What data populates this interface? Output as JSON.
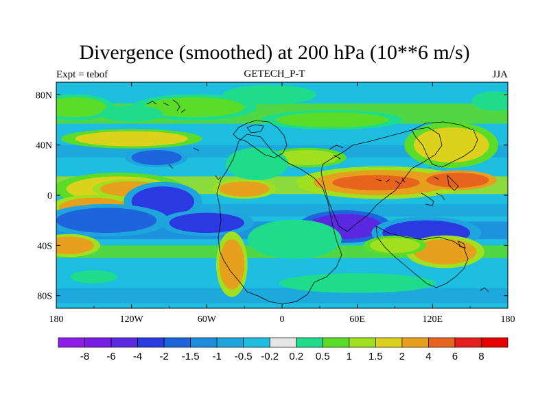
{
  "chart_data": {
    "type": "heatmap",
    "title": "Divergence (smoothed) at 200 hPa (10**6 m/s)",
    "subtitle_left": "Expt = tebof",
    "subtitle_center": "GETECH_P-T",
    "subtitle_right": "JJA",
    "x_ticks": [
      "180",
      "120W",
      "60W",
      "0",
      "60E",
      "120E",
      "180"
    ],
    "x_tick_values": [
      -180,
      -120,
      -60,
      0,
      60,
      120,
      180
    ],
    "y_ticks": [
      "80N",
      "40N",
      "0",
      "40S",
      "80S"
    ],
    "y_tick_values": [
      80,
      40,
      0,
      -40,
      -80
    ],
    "xlim": [
      -180,
      180
    ],
    "ylim": [
      -90,
      90
    ],
    "colorbar": {
      "levels": [
        "-8",
        "-6",
        "-4",
        "-2",
        "-1.5",
        "-1",
        "-0.5",
        "-0.2",
        "0.2",
        "0.5",
        "1",
        "1.5",
        "2",
        "4",
        "6",
        "8"
      ],
      "colors": [
        "#8c1ee8",
        "#7a1ee6",
        "#5a28e0",
        "#2a3ae0",
        "#1e64dc",
        "#1e8cdc",
        "#1ea6dc",
        "#1ebee0",
        "#e6e6e6",
        "#1edc8c",
        "#5adc28",
        "#a0e01e",
        "#dcd21e",
        "#e6a01e",
        "#e6641e",
        "#e61e1e",
        "#e60000"
      ]
    },
    "features": [
      {
        "type": "blob",
        "lon": -130,
        "lat": 5,
        "rx": 42,
        "ry": 10,
        "level": 1.5
      },
      {
        "type": "blob",
        "lon": -120,
        "lat": 5,
        "rx": 25,
        "ry": 6,
        "level": 2
      },
      {
        "type": "blob",
        "lon": -150,
        "lat": -10,
        "rx": 28,
        "ry": 8,
        "level": 2
      },
      {
        "type": "blob",
        "lon": 80,
        "lat": 10,
        "rx": 55,
        "ry": 10,
        "level": 2
      },
      {
        "type": "blob",
        "lon": 75,
        "lat": 10,
        "rx": 35,
        "ry": 6,
        "level": 4
      },
      {
        "type": "blob",
        "lon": 140,
        "lat": 12,
        "rx": 25,
        "ry": 6,
        "level": 4
      },
      {
        "type": "blob",
        "lon": -30,
        "lat": 5,
        "rx": 20,
        "ry": 6,
        "level": 2
      },
      {
        "type": "blob",
        "lon": -95,
        "lat": -5,
        "rx": 25,
        "ry": 12,
        "level": -2
      },
      {
        "type": "blob",
        "lon": -140,
        "lat": -20,
        "rx": 40,
        "ry": 10,
        "level": -1.5
      },
      {
        "type": "blob",
        "lon": -60,
        "lat": -22,
        "rx": 30,
        "ry": 8,
        "level": -2
      },
      {
        "type": "blob",
        "lon": 50,
        "lat": -25,
        "rx": 30,
        "ry": 10,
        "level": -4
      },
      {
        "type": "blob",
        "lon": 115,
        "lat": -30,
        "rx": 35,
        "ry": 10,
        "level": -2
      },
      {
        "type": "blob",
        "lon": 130,
        "lat": -45,
        "rx": 25,
        "ry": 10,
        "level": 2
      },
      {
        "type": "blob",
        "lon": 90,
        "lat": -40,
        "rx": 20,
        "ry": 6,
        "level": 1
      },
      {
        "type": "blob",
        "lon": -40,
        "lat": -55,
        "rx": 10,
        "ry": 20,
        "level": 2
      },
      {
        "type": "blob",
        "lon": -170,
        "lat": -40,
        "rx": 20,
        "ry": 7,
        "level": 2
      },
      {
        "type": "blob",
        "lon": 135,
        "lat": 40,
        "rx": 30,
        "ry": 14,
        "level": 1.5
      },
      {
        "type": "blob",
        "lon": -120,
        "lat": 45,
        "rx": 45,
        "ry": 6,
        "level": 1.5
      },
      {
        "type": "blob",
        "lon": -165,
        "lat": 70,
        "rx": 25,
        "ry": 8,
        "level": 0.5
      },
      {
        "type": "blob",
        "lon": -70,
        "lat": 70,
        "rx": 40,
        "ry": 8,
        "level": 0.5
      },
      {
        "type": "blob",
        "lon": 40,
        "lat": 60,
        "rx": 45,
        "ry": 6,
        "level": 0.5
      },
      {
        "type": "blob",
        "lon": 20,
        "lat": 30,
        "rx": 25,
        "ry": 6,
        "level": 1
      },
      {
        "type": "blob",
        "lon": -100,
        "lat": 30,
        "rx": 20,
        "ry": 6,
        "level": -1.5
      },
      {
        "type": "blob",
        "lon": -20,
        "lat": 25,
        "rx": 20,
        "ry": 10,
        "level": 0.2
      },
      {
        "type": "blob",
        "lon": 10,
        "lat": -35,
        "rx": 30,
        "ry": 12,
        "level": 0.2
      },
      {
        "type": "blob",
        "lon": -120,
        "lat": 65,
        "rx": 20,
        "ry": 5,
        "level": 0.2
      },
      {
        "type": "blob",
        "lon": 170,
        "lat": 75,
        "rx": 15,
        "ry": 6,
        "level": 0.2
      },
      {
        "type": "blob",
        "lon": -150,
        "lat": -65,
        "rx": 15,
        "ry": 4,
        "level": 0.2
      },
      {
        "type": "blob",
        "lon": 60,
        "lat": -70,
        "rx": 50,
        "ry": 6,
        "level": 0.2
      },
      {
        "type": "blob",
        "lon": -10,
        "lat": 80,
        "rx": 30,
        "ry": 6,
        "level": 0.2
      }
    ]
  }
}
